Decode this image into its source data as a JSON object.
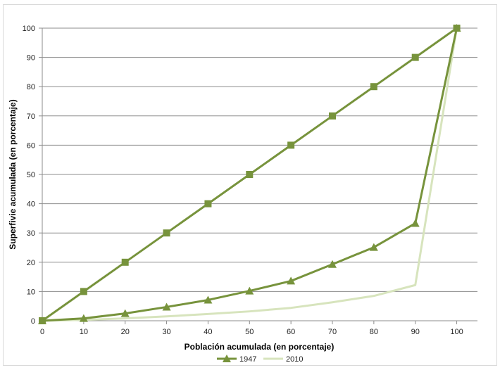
{
  "chart_data": {
    "type": "line",
    "xlabel": "Población acumulada (en porcentaje)",
    "ylabel": "Superfivie acumulada (en porcentaje)",
    "x": [
      0,
      10,
      20,
      30,
      40,
      50,
      60,
      70,
      80,
      90,
      100
    ],
    "xlim": [
      0,
      105
    ],
    "ylim": [
      0,
      100
    ],
    "xticks": [
      0,
      10,
      20,
      30,
      40,
      50,
      60,
      70,
      80,
      90,
      100
    ],
    "yticks": [
      0,
      10,
      20,
      30,
      40,
      50,
      60,
      70,
      80,
      90,
      100
    ],
    "grid": true,
    "legend": "bottom",
    "series": [
      {
        "key": "equality",
        "name": "",
        "values": [
          0,
          10,
          20,
          30,
          40,
          50,
          60,
          70,
          80,
          90,
          100
        ],
        "color": "#77933C",
        "marker": "square",
        "in_legend": false
      },
      {
        "key": "1947",
        "name": "1947",
        "values": [
          0,
          0.8,
          2.5,
          4.7,
          7.1,
          10.2,
          13.6,
          19.3,
          25.1,
          33.3,
          100
        ],
        "color": "#77933C",
        "marker": "triangle",
        "in_legend": true
      },
      {
        "key": "2010",
        "name": "2010",
        "values": [
          0,
          0.3,
          0.8,
          1.5,
          2.3,
          3.2,
          4.4,
          6.3,
          8.5,
          12.2,
          100
        ],
        "color": "#D7E4BD",
        "marker": "none",
        "in_legend": true
      }
    ]
  }
}
